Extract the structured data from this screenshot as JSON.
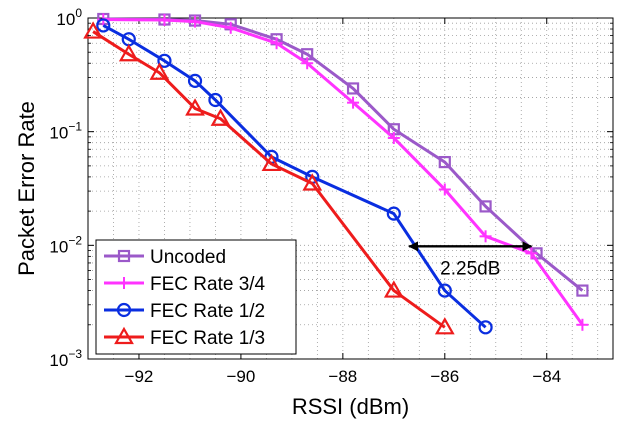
{
  "chart_data": {
    "type": "line",
    "title": "",
    "xlabel": "RSSI (dBm)",
    "ylabel": "Packet Error Rate",
    "xlim": [
      -93,
      -82.7
    ],
    "ylim": [
      0.001,
      1
    ],
    "yscale": "log",
    "grid": true,
    "legend_position": "bottom-left",
    "x_ticks": [
      {
        "value": -92,
        "label": "−92"
      },
      {
        "value": -90,
        "label": "−90"
      },
      {
        "value": -88,
        "label": "−88"
      },
      {
        "value": -86,
        "label": "−86"
      },
      {
        "value": -84,
        "label": "−84"
      }
    ],
    "y_ticks": [
      {
        "value": 0.001,
        "base": "10",
        "exp": "−3"
      },
      {
        "value": 0.01,
        "base": "10",
        "exp": "−2"
      },
      {
        "value": 0.1,
        "base": "10",
        "exp": "−1"
      },
      {
        "value": 1,
        "base": "10",
        "exp": "0"
      }
    ],
    "series": [
      {
        "name": "Uncoded",
        "color": "#9b59c9",
        "marker": "square",
        "x": [
          -92.7,
          -91.5,
          -90.9,
          -90.2,
          -89.3,
          -88.7,
          -87.8,
          -87.0,
          -86.0,
          -85.2,
          -84.2,
          -83.3
        ],
        "y": [
          0.98,
          0.97,
          0.95,
          0.88,
          0.65,
          0.48,
          0.24,
          0.105,
          0.054,
          0.022,
          0.0085,
          0.004
        ]
      },
      {
        "name": "FEC Rate 3/4",
        "color": "#ff33ff",
        "marker": "plus",
        "x": [
          -92.7,
          -91.5,
          -90.9,
          -90.2,
          -89.3,
          -88.7,
          -87.8,
          -87.0,
          -86.0,
          -85.2,
          -84.3,
          -83.3
        ],
        "y": [
          0.97,
          0.96,
          0.93,
          0.82,
          0.6,
          0.4,
          0.18,
          0.088,
          0.031,
          0.012,
          0.0085,
          0.002
        ]
      },
      {
        "name": "FEC Rate 1/2",
        "color": "#0a2ee0",
        "marker": "circle",
        "x": [
          -92.7,
          -92.2,
          -91.5,
          -90.9,
          -90.5,
          -89.4,
          -88.6,
          -87.0,
          -86.0,
          -85.2
        ],
        "y": [
          0.86,
          0.65,
          0.42,
          0.28,
          0.19,
          0.06,
          0.04,
          0.019,
          0.004,
          0.0019
        ]
      },
      {
        "name": "FEC Rate 1/3",
        "color": "#ee1c1c",
        "marker": "triangle",
        "x": [
          -92.9,
          -92.2,
          -91.6,
          -90.9,
          -90.4,
          -89.4,
          -88.6,
          -87.0,
          -86.0
        ],
        "y": [
          0.76,
          0.48,
          0.33,
          0.16,
          0.13,
          0.052,
          0.035,
          0.004,
          0.0019
        ]
      }
    ],
    "annotation": {
      "text": "2.25dB",
      "x_from": -86.7,
      "x_to": -84.3,
      "y": 0.0098
    }
  }
}
